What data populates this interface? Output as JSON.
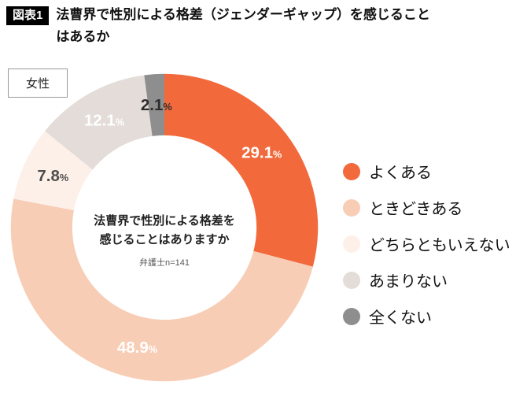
{
  "header": {
    "badge": "図表1",
    "title_line1": "法曹界で性別による格差（ジェンダーギャップ）を感じること",
    "title_line2": "はあるか"
  },
  "group_label": "女性",
  "chart_data": {
    "type": "pie",
    "style": "donut",
    "start_angle_deg": 0,
    "direction": "clockwise",
    "unit": "%",
    "legend_position": "right",
    "center_title_lines": [
      "法曹界で性別による格差を",
      "感じることはありますか"
    ],
    "center_note": "弁護士n=141",
    "segments": [
      {
        "label": "よくある",
        "value": 29.1,
        "color": "#f2693c",
        "value_label_color": "#ffffff"
      },
      {
        "label": "ときどきある",
        "value": 48.9,
        "color": "#f8cdb6",
        "value_label_color": "#ffffff"
      },
      {
        "label": "どちらともいえない",
        "value": 7.8,
        "color": "#fdf0e9",
        "value_label_color": "#4d4d4d"
      },
      {
        "label": "あまりない",
        "value": 12.1,
        "color": "#e3dcd9",
        "value_label_color": "#ffffff"
      },
      {
        "label": "全くない",
        "value": 2.1,
        "color": "#8e8e8e",
        "value_label_color": "#2e2e2e"
      }
    ]
  }
}
